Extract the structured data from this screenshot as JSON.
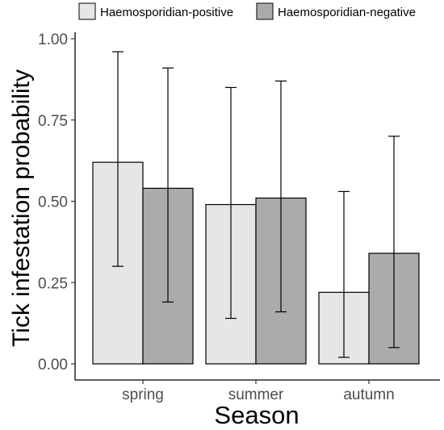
{
  "chart_data": {
    "type": "bar",
    "xlabel": "Season",
    "ylabel": "Tick infestation probability",
    "categories": [
      "spring",
      "summer",
      "autumn"
    ],
    "ylim": [
      0,
      1
    ],
    "yticks": [
      "0.00",
      "0.25",
      "0.50",
      "0.75",
      "1.00"
    ],
    "grid": false,
    "legend_position": "top",
    "series": [
      {
        "name": "Haemosporidian-positive",
        "color": "#e6e6e6",
        "values": [
          0.62,
          0.49,
          0.22
        ],
        "lower": [
          0.3,
          0.14,
          0.02
        ],
        "upper": [
          0.96,
          0.85,
          0.53
        ]
      },
      {
        "name": "Haemosporidian-negative",
        "color": "#ababab",
        "values": [
          0.54,
          0.51,
          0.34
        ],
        "lower": [
          0.19,
          0.16,
          0.05
        ],
        "upper": [
          0.91,
          0.87,
          0.7
        ]
      }
    ]
  }
}
